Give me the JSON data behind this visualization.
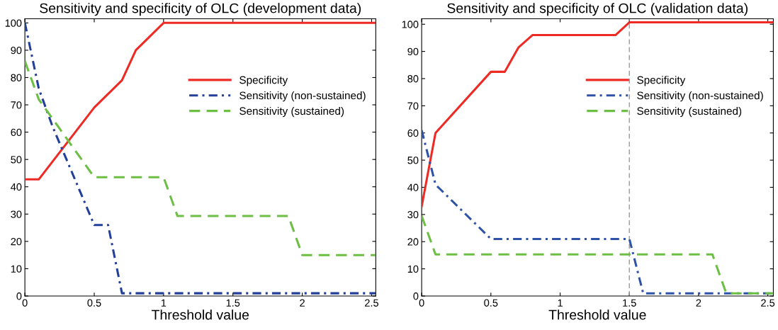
{
  "chart_data": [
    {
      "type": "line",
      "title": "Sensitivity and specificity of OLC (development data)",
      "xlabel": "Threshold value",
      "xlim": [
        0,
        2.53
      ],
      "ylim": [
        0,
        101.5
      ],
      "xticks": [
        0,
        0.5,
        1,
        1.5,
        2,
        2.5
      ],
      "yticks": [
        0,
        10,
        20,
        30,
        40,
        50,
        60,
        70,
        80,
        90,
        100
      ],
      "grid": false,
      "legend": "right",
      "series": [
        {
          "name": "Specificity",
          "color": "#ee2a24",
          "line_style": "solid",
          "x": [
            0,
            0.1,
            0.5,
            0.7,
            0.8,
            1.0,
            2.53
          ],
          "values": [
            42.7,
            42.7,
            69,
            79,
            90,
            100,
            100
          ]
        },
        {
          "name": "Sensitivity (non-sustained)",
          "color": "#233f9a",
          "line_style": "dashdot",
          "x": [
            0,
            0.1,
            0.2,
            0.3,
            0.4,
            0.5,
            0.6,
            0.7,
            2.53
          ],
          "values": [
            100,
            76,
            62,
            50,
            38,
            26,
            26,
            1,
            1
          ]
        },
        {
          "name": "Sensitivity (sustained)",
          "color": "#6cbf43",
          "line_style": "dashed",
          "x": [
            0,
            0.1,
            0.5,
            1.0,
            1.1,
            1.9,
            2.0,
            2.53
          ],
          "values": [
            86,
            72,
            43.5,
            43.5,
            29.3,
            29.3,
            15,
            15
          ]
        }
      ]
    },
    {
      "type": "line",
      "title": "Sensitivity and specificity of OLC (validation data)",
      "xlabel": "Threshold value",
      "xlim": [
        0,
        2.54
      ],
      "ylim": [
        0,
        102
      ],
      "xticks": [
        0,
        0.5,
        1,
        1.5,
        2,
        2.5
      ],
      "yticks": [
        0,
        10,
        20,
        30,
        40,
        50,
        60,
        70,
        80,
        90,
        100
      ],
      "grid": false,
      "legend": "right",
      "ref_lines": [
        {
          "axis": "x",
          "value": 1.5,
          "color": "#999999",
          "line_style": "dashed"
        }
      ],
      "series": [
        {
          "name": "Specificity",
          "color": "#ee2a24",
          "line_style": "solid",
          "x": [
            0,
            0.1,
            0.5,
            0.6,
            0.7,
            0.8,
            1.4,
            1.5,
            2.54
          ],
          "values": [
            33,
            60,
            82.5,
            82.5,
            91.5,
            96,
            96,
            100.7,
            100.7
          ]
        },
        {
          "name": "Sensitivity (non-sustained)",
          "color": "#2e52a8",
          "line_style": "dashdot",
          "x": [
            0,
            0.1,
            0.5,
            1.5,
            1.6,
            2.54
          ],
          "values": [
            61,
            41,
            21,
            21,
            1,
            1
          ]
        },
        {
          "name": "Sensitivity (sustained)",
          "color": "#6cbf43",
          "line_style": "dashed",
          "x": [
            0,
            0.1,
            2.1,
            2.2,
            2.54
          ],
          "values": [
            29.5,
            15.3,
            15.3,
            1,
            1
          ]
        }
      ]
    }
  ]
}
